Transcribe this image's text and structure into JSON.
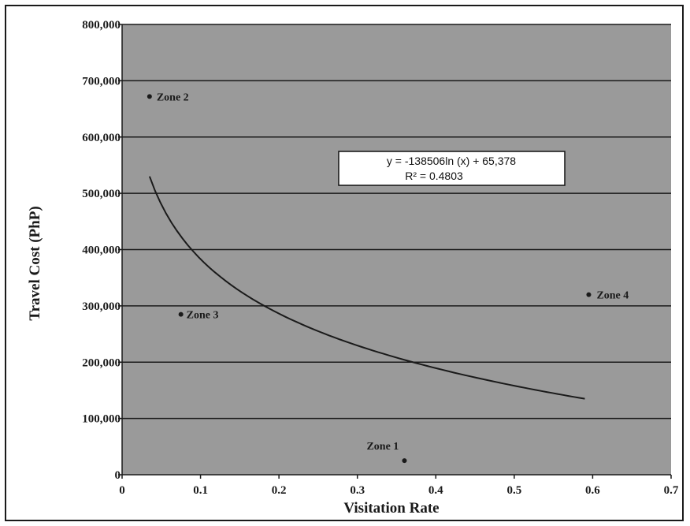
{
  "chart_data": {
    "type": "scatter",
    "title": "",
    "xlabel": "Visitation Rate",
    "ylabel": "Travel Cost (PhP)",
    "xlim": [
      0,
      0.7
    ],
    "ylim": [
      0,
      800000
    ],
    "x_ticks": [
      "0",
      "0.1",
      "0.2",
      "0.3",
      "0.4",
      "0.5",
      "0.6",
      "0.7"
    ],
    "y_ticks": [
      "0",
      "100,000",
      "200,000",
      "300,000",
      "400,000",
      "500,000",
      "600,000",
      "700,000",
      "800,000"
    ],
    "grid": "horizontal",
    "points": [
      {
        "label": "Zone 1",
        "x": 0.36,
        "y": 25000
      },
      {
        "label": "Zone 2",
        "x": 0.035,
        "y": 672000
      },
      {
        "label": "Zone 3",
        "x": 0.075,
        "y": 285000
      },
      {
        "label": "Zone 4",
        "x": 0.595,
        "y": 320000
      }
    ],
    "trendline": {
      "type": "logarithmic",
      "x_range": [
        0.035,
        0.59
      ],
      "y_range": [
        530000,
        135000
      ],
      "equation": "y = -138506ln (x) + 65,378",
      "r_squared": "R² = 0.4803"
    },
    "colors": {
      "plot_background": "#9a9a9a",
      "gridline": "#1a1a1a",
      "marker": "#1a1a1a",
      "trendline": "#1a1a1a"
    }
  }
}
